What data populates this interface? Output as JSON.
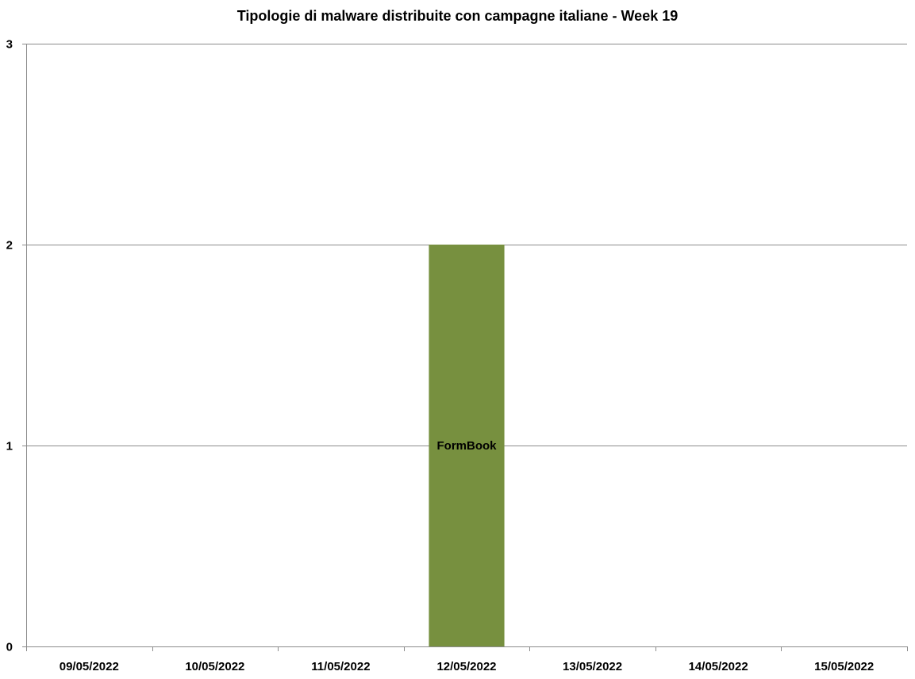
{
  "chart_data": {
    "type": "bar",
    "title": "Tipologie  di malware distribuite con campagne italiane - Week 19",
    "xlabel": "",
    "ylabel": "",
    "categories": [
      "09/05/2022",
      "10/05/2022",
      "11/05/2022",
      "12/05/2022",
      "13/05/2022",
      "14/05/2022",
      "15/05/2022"
    ],
    "series": [
      {
        "name": "FormBook",
        "color": "#77903f",
        "values": [
          0,
          0,
          0,
          2,
          0,
          0,
          0
        ]
      }
    ],
    "ylim": [
      0,
      3
    ],
    "yticks": [
      0,
      1,
      2,
      3
    ],
    "grid": true,
    "legend": "none",
    "data_labels": "series-name-centered"
  }
}
